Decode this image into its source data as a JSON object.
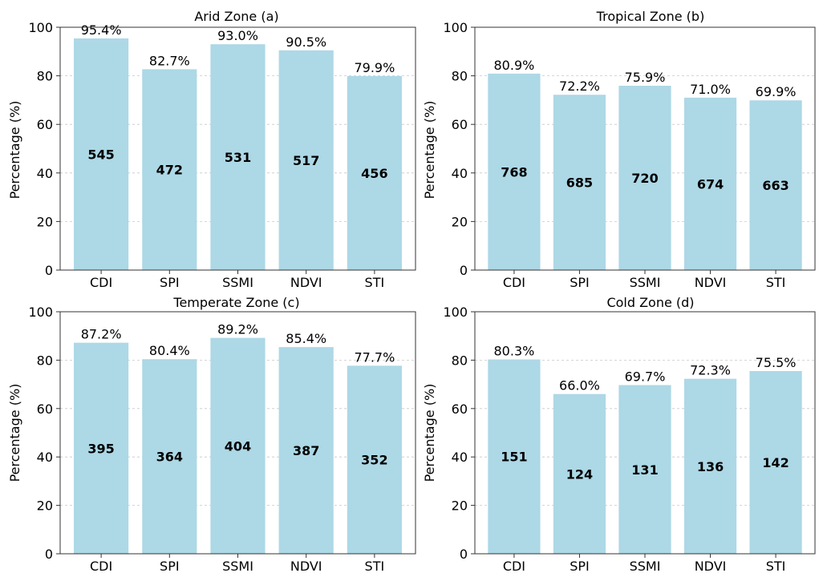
{
  "colors": {
    "bar": "#add8e6",
    "frame": "#333333",
    "grid": "#c8c8c8"
  },
  "chart_data": [
    {
      "type": "bar",
      "title": "Arid Zone (a)",
      "xlabel": "",
      "ylabel": "Percentage (%)",
      "ylim": [
        0,
        100
      ],
      "yticks": [
        0,
        20,
        40,
        60,
        80,
        100
      ],
      "grid": "y-dashed",
      "categories": [
        "CDI",
        "SPI",
        "SSMI",
        "NDVI",
        "STI"
      ],
      "values": [
        95.4,
        82.7,
        93.0,
        90.5,
        79.9
      ],
      "value_labels": [
        "95.4%",
        "82.7%",
        "93.0%",
        "90.5%",
        "79.9%"
      ],
      "counts": [
        "545",
        "472",
        "531",
        "517",
        "456"
      ]
    },
    {
      "type": "bar",
      "title": "Tropical Zone (b)",
      "xlabel": "",
      "ylabel": "Percentage (%)",
      "ylim": [
        0,
        100
      ],
      "yticks": [
        0,
        20,
        40,
        60,
        80,
        100
      ],
      "grid": "y-dashed",
      "categories": [
        "CDI",
        "SPI",
        "SSMI",
        "NDVI",
        "STI"
      ],
      "values": [
        80.9,
        72.2,
        75.9,
        71.0,
        69.9
      ],
      "value_labels": [
        "80.9%",
        "72.2%",
        "75.9%",
        "71.0%",
        "69.9%"
      ],
      "counts": [
        "768",
        "685",
        "720",
        "674",
        "663"
      ]
    },
    {
      "type": "bar",
      "title": "Temperate Zone (c)",
      "xlabel": "",
      "ylabel": "Percentage (%)",
      "ylim": [
        0,
        100
      ],
      "yticks": [
        0,
        20,
        40,
        60,
        80,
        100
      ],
      "grid": "y-dashed",
      "categories": [
        "CDI",
        "SPI",
        "SSMI",
        "NDVI",
        "STI"
      ],
      "values": [
        87.2,
        80.4,
        89.2,
        85.4,
        77.7
      ],
      "value_labels": [
        "87.2%",
        "80.4%",
        "89.2%",
        "85.4%",
        "77.7%"
      ],
      "counts": [
        "395",
        "364",
        "404",
        "387",
        "352"
      ]
    },
    {
      "type": "bar",
      "title": "Cold Zone (d)",
      "xlabel": "",
      "ylabel": "Percentage (%)",
      "ylim": [
        0,
        100
      ],
      "yticks": [
        0,
        20,
        40,
        60,
        80,
        100
      ],
      "grid": "y-dashed",
      "categories": [
        "CDI",
        "SPI",
        "SSMI",
        "NDVI",
        "STI"
      ],
      "values": [
        80.3,
        66.0,
        69.7,
        72.3,
        75.5
      ],
      "value_labels": [
        "80.3%",
        "66.0%",
        "69.7%",
        "72.3%",
        "75.5%"
      ],
      "counts": [
        "151",
        "124",
        "131",
        "136",
        "142"
      ]
    }
  ]
}
